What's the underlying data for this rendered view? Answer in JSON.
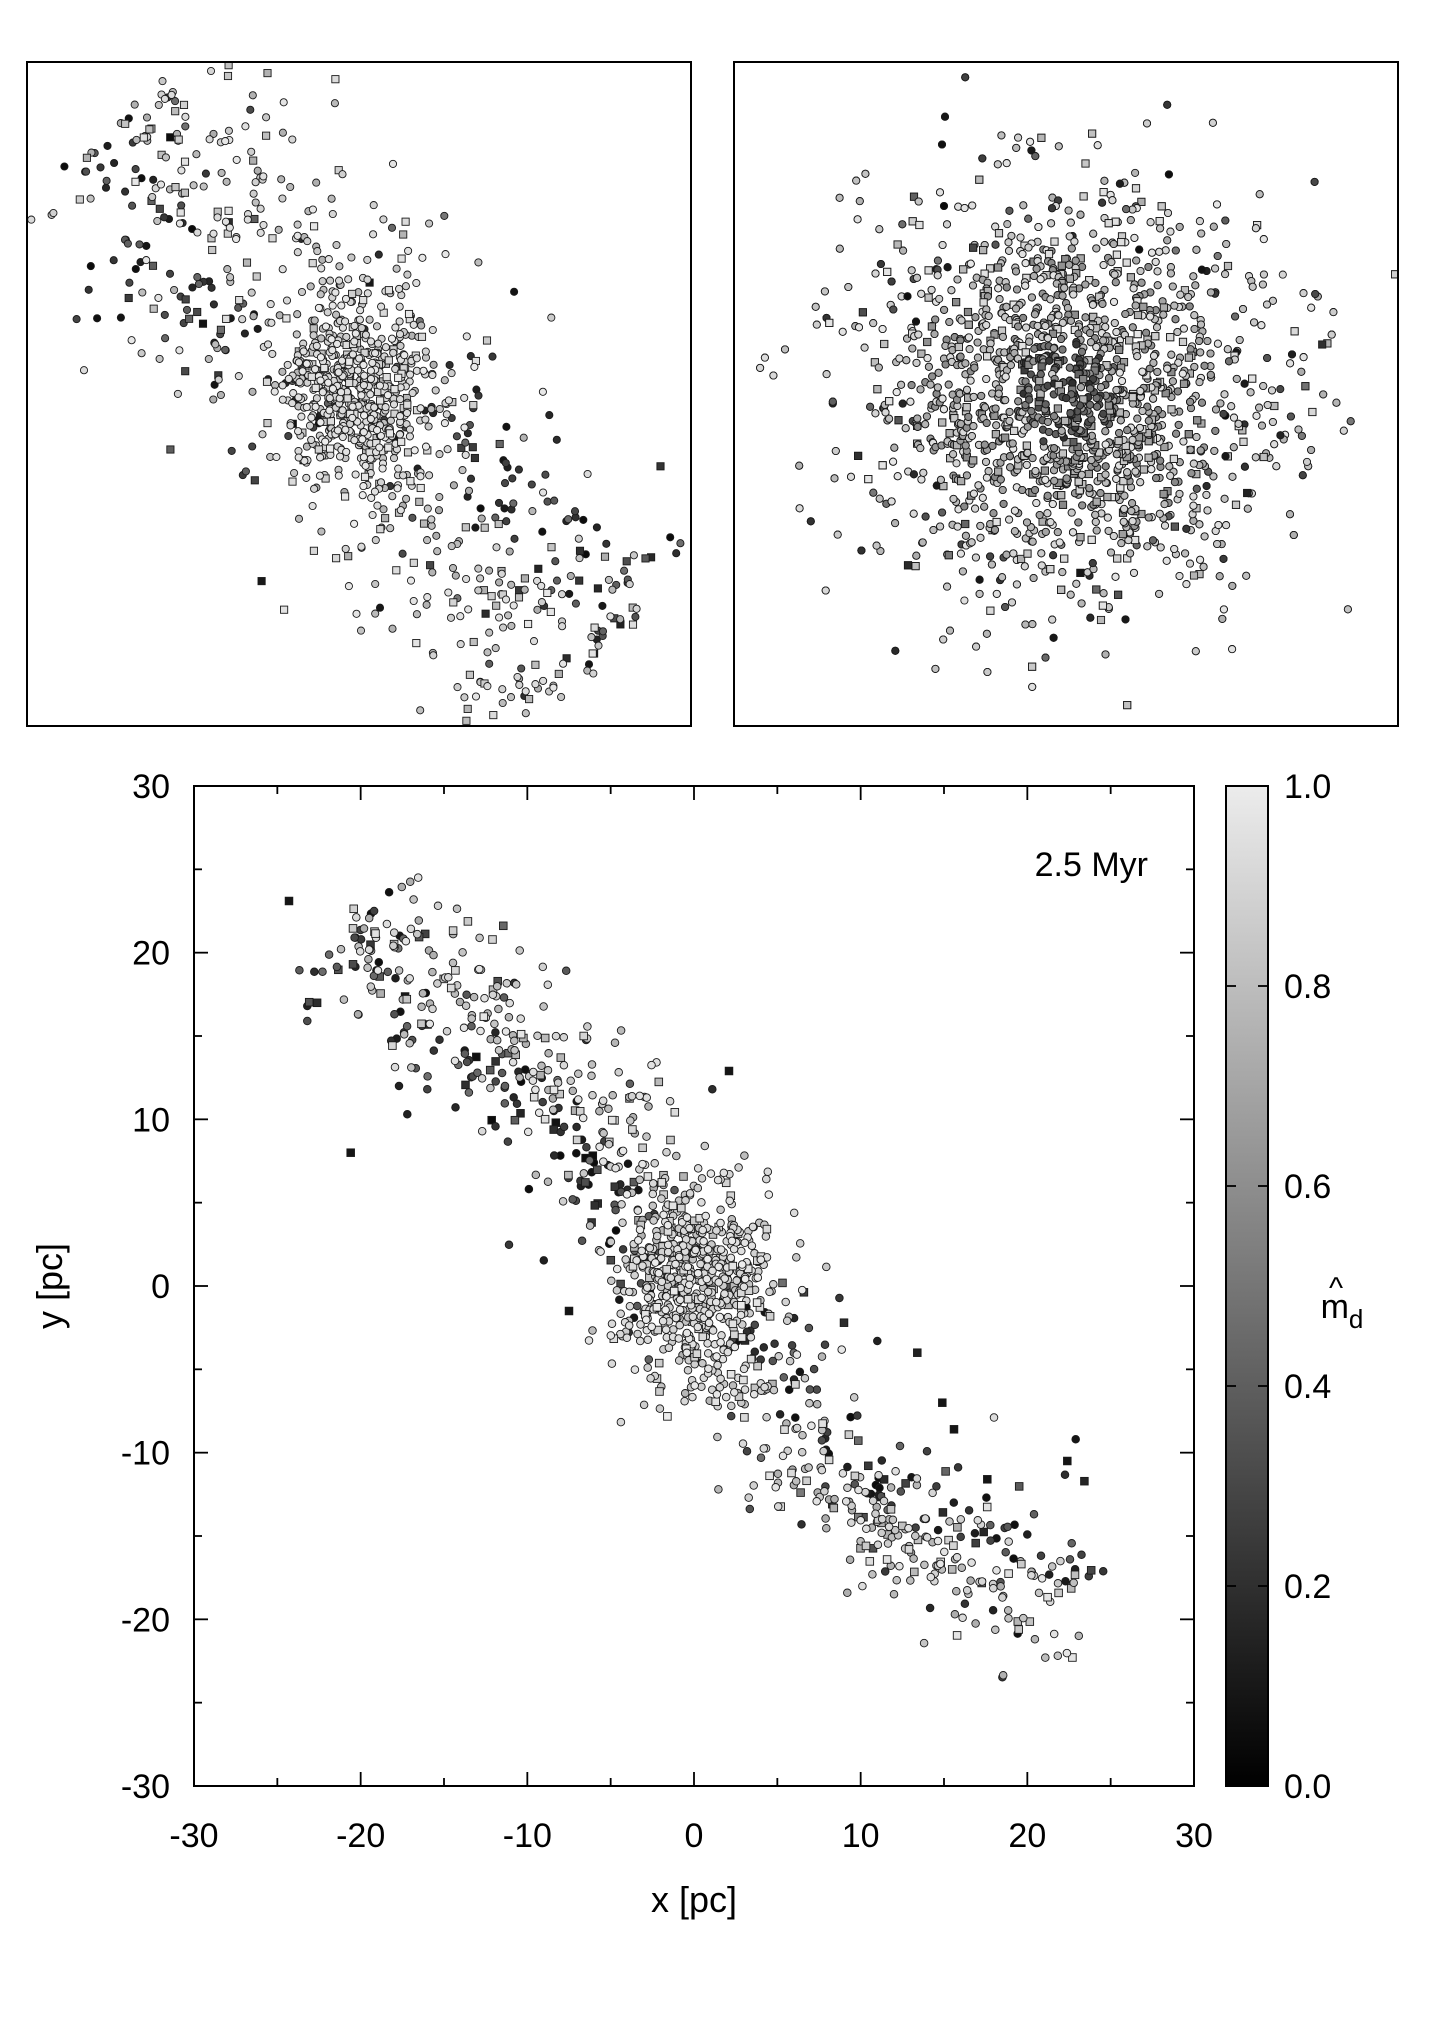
{
  "figure": {
    "main_annotation": "2.5 Myr",
    "colorbar_label": "m̂d"
  },
  "chart_data": [
    {
      "type": "scatter",
      "panel": "top-left zoom",
      "title": "",
      "xlabel": "",
      "ylabel": "",
      "axes_visible": false,
      "xlim": [
        -6,
        6
      ],
      "ylim": [
        -6,
        6
      ],
      "grid": false,
      "markers": {
        "circle": "star",
        "square": "star (alternate marker)"
      },
      "color_encoding": "grayscale by m̂d (0 = black, 1 = light gray)",
      "structure": {
        "distribution": "elongated band",
        "orientation": "upper-left to lower-right",
        "core_center": [
          0.0,
          0.0
        ],
        "core_spread": 0.7,
        "core_value": 0.9,
        "band_spread_perpendicular": 1.3,
        "n_core": 520,
        "n_band": 700
      }
    },
    {
      "type": "scatter",
      "panel": "top-right zoom",
      "title": "",
      "xlabel": "",
      "ylabel": "",
      "axes_visible": false,
      "xlim": [
        -3,
        3
      ],
      "ylim": [
        -3,
        3
      ],
      "grid": false,
      "markers": {
        "circle": "star",
        "square": "star (alternate marker)"
      },
      "color_encoding": "grayscale by m̂d (0 = black, 1 = light gray)",
      "structure": {
        "distribution": "roughly circular cluster",
        "center": [
          0.0,
          0.0
        ],
        "core_spread": 0.9,
        "dark_center": true,
        "n_points": 3300
      }
    },
    {
      "type": "scatter",
      "panel": "main",
      "title": "",
      "xlabel": "x [pc]",
      "ylabel": "y [pc]",
      "xlim": [
        -30,
        30
      ],
      "ylim": [
        -30,
        30
      ],
      "xticks": [
        -30,
        -20,
        -10,
        0,
        10,
        20,
        30
      ],
      "yticks": [
        -30,
        -20,
        -10,
        0,
        10,
        20,
        30
      ],
      "xtick_labels": [
        "-30",
        "-20",
        "-10",
        "0",
        "10",
        "20",
        "30"
      ],
      "ytick_labels": [
        "-30",
        "-20",
        "-10",
        "0",
        "10",
        "20",
        "30"
      ],
      "minor_tick_step": 5,
      "grid": false,
      "legend": "none",
      "annotation": "2.5 Myr",
      "markers": {
        "circle": "star",
        "square": "star (alternate marker)"
      },
      "color_encoding": "grayscale by m̂d (0 = black, 1 = light gray)",
      "colorbar": {
        "label": "m̂d",
        "min": 0.0,
        "max": 1.0,
        "ticks": [
          0.0,
          0.2,
          0.4,
          0.6,
          0.8,
          1.0
        ],
        "tick_labels": [
          "0.0",
          "0.2",
          "0.4",
          "0.6",
          "0.8",
          "1.0"
        ],
        "position": "right"
      },
      "structure": {
        "distribution": "tidal stream with central cluster",
        "core_center": [
          0.0,
          0.0
        ],
        "core_spread": 2.3,
        "core_value": 0.9,
        "stream_spine": [
          {
            "x": -21,
            "y": 21.5
          },
          {
            "x": -15,
            "y": 17.5
          },
          {
            "x": -9,
            "y": 12.5
          },
          {
            "x": -4,
            "y": 7.5
          },
          {
            "x": 0,
            "y": 0
          },
          {
            "x": 5,
            "y": -7.5
          },
          {
            "x": 10,
            "y": -13.5
          },
          {
            "x": 16,
            "y": -16
          },
          {
            "x": 24,
            "y": -19
          }
        ],
        "stream_spread_perpendicular": 2.2,
        "dark_members_offset": "below-left of spine in north arm, above-right of spine in south arm",
        "outliers": [
          {
            "x": -24.3,
            "y": 23.1,
            "m": 0.05
          },
          {
            "x": -23.2,
            "y": 16.8,
            "m": 0.1
          },
          {
            "x": -23.2,
            "y": 15.9,
            "m": 0.3
          },
          {
            "x": -20.6,
            "y": 8.0,
            "m": 0.05
          },
          {
            "x": -17.7,
            "y": 12.0,
            "m": 0.1
          },
          {
            "x": -17.2,
            "y": 10.3,
            "m": 0.1
          },
          {
            "x": -16.0,
            "y": 11.8,
            "m": 0.25
          },
          {
            "x": -7.5,
            "y": -1.5,
            "m": 0.05
          },
          {
            "x": 9.0,
            "y": -2.2,
            "m": 0.15
          },
          {
            "x": 11.0,
            "y": -3.3,
            "m": 0.1
          },
          {
            "x": 13.4,
            "y": -4.0,
            "m": 0.1
          },
          {
            "x": 14.9,
            "y": -7.0,
            "m": 0.05
          },
          {
            "x": 15.6,
            "y": -8.6,
            "m": 0.05
          },
          {
            "x": 17.6,
            "y": -11.6,
            "m": 0.05
          },
          {
            "x": 22.4,
            "y": -10.5,
            "m": 0.05
          },
          {
            "x": 22.9,
            "y": -9.2,
            "m": 0.05
          },
          {
            "x": 2.1,
            "y": 12.9,
            "m": 0.05
          },
          {
            "x": 1.1,
            "y": 11.8,
            "m": 0.15
          }
        ],
        "n_core": 520,
        "n_stream": 820
      }
    }
  ]
}
